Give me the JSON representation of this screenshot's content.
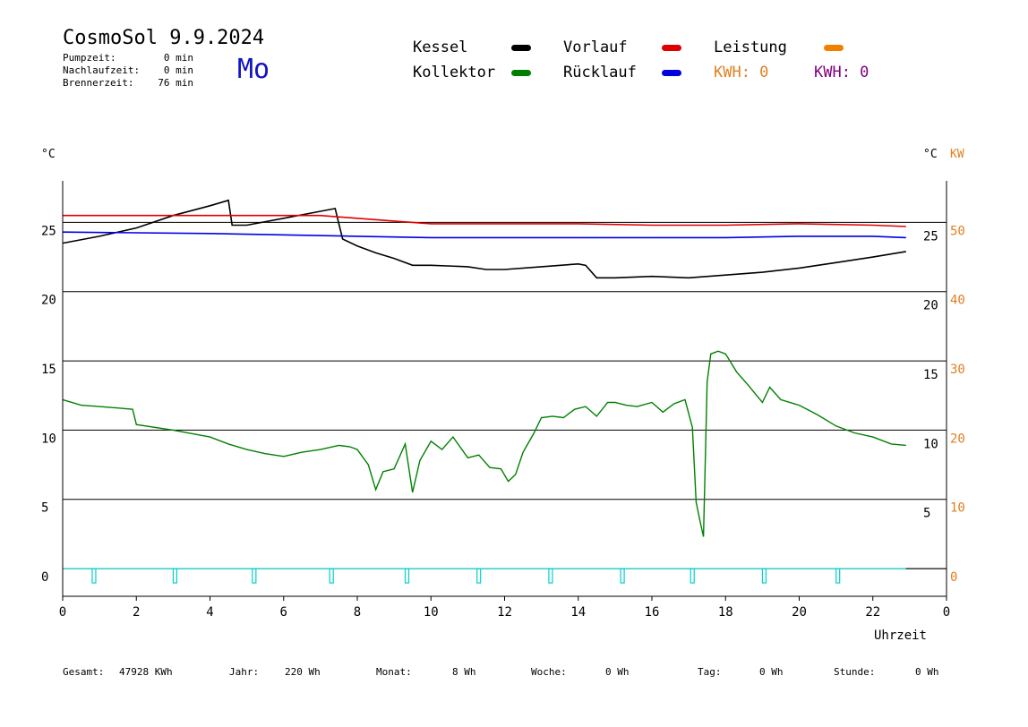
{
  "header": {
    "title": "CosmoSol 9.9.2024",
    "weekday": "Mo",
    "stats": [
      {
        "label": "Pumpzeit:",
        "value": "0 min"
      },
      {
        "label": "Nachlaufzeit:",
        "value": "0 min"
      },
      {
        "label": "Brennerzeit:",
        "value": "76 min"
      }
    ]
  },
  "legend": {
    "kessel": {
      "label": "Kessel",
      "color": "#000000"
    },
    "kollektor": {
      "label": "Kollektor",
      "color": "#008000"
    },
    "vorlauf": {
      "label": "Vorlauf",
      "color": "#e00000"
    },
    "ruecklauf": {
      "label": "Rücklauf",
      "color": "#0000e0"
    },
    "leistung": {
      "label": "Leistung",
      "color": "#f08000"
    },
    "kwh1": {
      "label": "KWH: 0",
      "color": "#e08020"
    },
    "kwh2": {
      "label": "KWH: 0",
      "color": "#800080"
    }
  },
  "footer": [
    {
      "label": "Gesamt:",
      "value": "47928 KWh"
    },
    {
      "label": "Jahr:",
      "value": "220 Wh"
    },
    {
      "label": "Monat:",
      "value": "8 Wh"
    },
    {
      "label": "Woche:",
      "value": "0 Wh"
    },
    {
      "label": "Tag:",
      "value": "0 Wh"
    },
    {
      "label": "Stunde:",
      "value": "0 Wh"
    }
  ],
  "chart_data": {
    "type": "line",
    "xlabel": "Uhrzeit",
    "xlim": [
      0,
      24
    ],
    "xticks": [
      "0",
      "2",
      "4",
      "6",
      "8",
      "10",
      "12",
      "14",
      "16",
      "18",
      "20",
      "22",
      "0"
    ],
    "left_axis": {
      "unit": "°C",
      "range": [
        -2,
        28
      ],
      "ticks": [
        "0",
        "5",
        "10",
        "15",
        "20",
        "25"
      ]
    },
    "right_axis_temp": {
      "unit": "°C",
      "ticks": [
        "5",
        "10",
        "15",
        "20",
        "25"
      ]
    },
    "right_axis_power": {
      "unit": "KW",
      "color": "#e08020",
      "ticks": [
        "0",
        "10",
        "20",
        "30",
        "40",
        "50"
      ]
    },
    "grid": "horizontal lines every 5 °C",
    "series": [
      {
        "name": "Kessel",
        "color": "#000000",
        "points": [
          [
            0,
            23.5
          ],
          [
            1,
            24.0
          ],
          [
            2,
            24.6
          ],
          [
            3,
            25.5
          ],
          [
            4,
            26.2
          ],
          [
            4.5,
            26.6
          ],
          [
            4.6,
            24.8
          ],
          [
            5,
            24.8
          ],
          [
            6,
            25.3
          ],
          [
            7,
            25.8
          ],
          [
            7.4,
            26.0
          ],
          [
            7.6,
            23.8
          ],
          [
            8,
            23.3
          ],
          [
            8.5,
            22.8
          ],
          [
            9,
            22.4
          ],
          [
            9.5,
            21.9
          ],
          [
            10,
            21.9
          ],
          [
            11,
            21.8
          ],
          [
            11.5,
            21.6
          ],
          [
            12,
            21.6
          ],
          [
            13,
            21.8
          ],
          [
            14,
            22.0
          ],
          [
            14.2,
            21.9
          ],
          [
            14.5,
            21.0
          ],
          [
            15,
            21.0
          ],
          [
            16,
            21.1
          ],
          [
            17,
            21.0
          ],
          [
            18,
            21.2
          ],
          [
            19,
            21.4
          ],
          [
            20,
            21.7
          ],
          [
            21,
            22.1
          ],
          [
            22,
            22.5
          ],
          [
            22.9,
            22.9
          ]
        ]
      },
      {
        "name": "Vorlauf",
        "color": "#e00000",
        "points": [
          [
            0,
            25.5
          ],
          [
            7,
            25.5
          ],
          [
            8,
            25.3
          ],
          [
            9,
            25.1
          ],
          [
            10,
            24.9
          ],
          [
            12,
            24.9
          ],
          [
            14,
            24.9
          ],
          [
            16,
            24.8
          ],
          [
            18,
            24.8
          ],
          [
            20,
            24.9
          ],
          [
            22,
            24.8
          ],
          [
            22.9,
            24.7
          ]
        ]
      },
      {
        "name": "Rücklauf",
        "color": "#0000e0",
        "points": [
          [
            0,
            24.3
          ],
          [
            4,
            24.2
          ],
          [
            8,
            24.0
          ],
          [
            10,
            23.9
          ],
          [
            12,
            23.9
          ],
          [
            14,
            23.9
          ],
          [
            16,
            23.9
          ],
          [
            18,
            23.9
          ],
          [
            20,
            24.0
          ],
          [
            22,
            24.0
          ],
          [
            22.9,
            23.9
          ]
        ]
      },
      {
        "name": "Kollektor",
        "color": "#008000",
        "points": [
          [
            0,
            12.2
          ],
          [
            0.5,
            11.8
          ],
          [
            1,
            11.7
          ],
          [
            1.5,
            11.6
          ],
          [
            1.9,
            11.5
          ],
          [
            2,
            10.4
          ],
          [
            3,
            10.0
          ],
          [
            4,
            9.5
          ],
          [
            4.5,
            9.0
          ],
          [
            5,
            8.6
          ],
          [
            5.5,
            8.3
          ],
          [
            6,
            8.1
          ],
          [
            6.5,
            8.4
          ],
          [
            7,
            8.6
          ],
          [
            7.5,
            8.9
          ],
          [
            7.8,
            8.8
          ],
          [
            8,
            8.6
          ],
          [
            8.3,
            7.5
          ],
          [
            8.5,
            5.7
          ],
          [
            8.7,
            7.0
          ],
          [
            9,
            7.2
          ],
          [
            9.3,
            9.0
          ],
          [
            9.5,
            5.5
          ],
          [
            9.7,
            7.8
          ],
          [
            10,
            9.2
          ],
          [
            10.3,
            8.6
          ],
          [
            10.6,
            9.5
          ],
          [
            11,
            8.0
          ],
          [
            11.3,
            8.2
          ],
          [
            11.6,
            7.3
          ],
          [
            11.9,
            7.2
          ],
          [
            12.1,
            6.3
          ],
          [
            12.3,
            6.8
          ],
          [
            12.5,
            8.4
          ],
          [
            12.8,
            9.8
          ],
          [
            13,
            10.9
          ],
          [
            13.3,
            11.0
          ],
          [
            13.6,
            10.9
          ],
          [
            13.9,
            11.5
          ],
          [
            14.2,
            11.7
          ],
          [
            14.5,
            11.0
          ],
          [
            14.8,
            12.0
          ],
          [
            15,
            12.0
          ],
          [
            15.3,
            11.8
          ],
          [
            15.6,
            11.7
          ],
          [
            16,
            12.0
          ],
          [
            16.3,
            11.3
          ],
          [
            16.6,
            11.9
          ],
          [
            16.9,
            12.2
          ],
          [
            17.1,
            10.2
          ],
          [
            17.2,
            4.8
          ],
          [
            17.3,
            3.5
          ],
          [
            17.4,
            2.3
          ],
          [
            17.5,
            13.5
          ],
          [
            17.6,
            15.5
          ],
          [
            17.8,
            15.7
          ],
          [
            18,
            15.5
          ],
          [
            18.3,
            14.2
          ],
          [
            18.6,
            13.3
          ],
          [
            19,
            12.0
          ],
          [
            19.2,
            13.1
          ],
          [
            19.5,
            12.2
          ],
          [
            20,
            11.8
          ],
          [
            20.5,
            11.1
          ],
          [
            21,
            10.3
          ],
          [
            21.5,
            9.8
          ],
          [
            22,
            9.5
          ],
          [
            22.5,
            9.0
          ],
          [
            22.9,
            8.9
          ]
        ]
      }
    ],
    "pulses_hours": [
      0.85,
      3.05,
      5.2,
      7.3,
      9.35,
      11.3,
      13.25,
      15.2,
      17.1,
      19.05,
      21.05
    ]
  }
}
